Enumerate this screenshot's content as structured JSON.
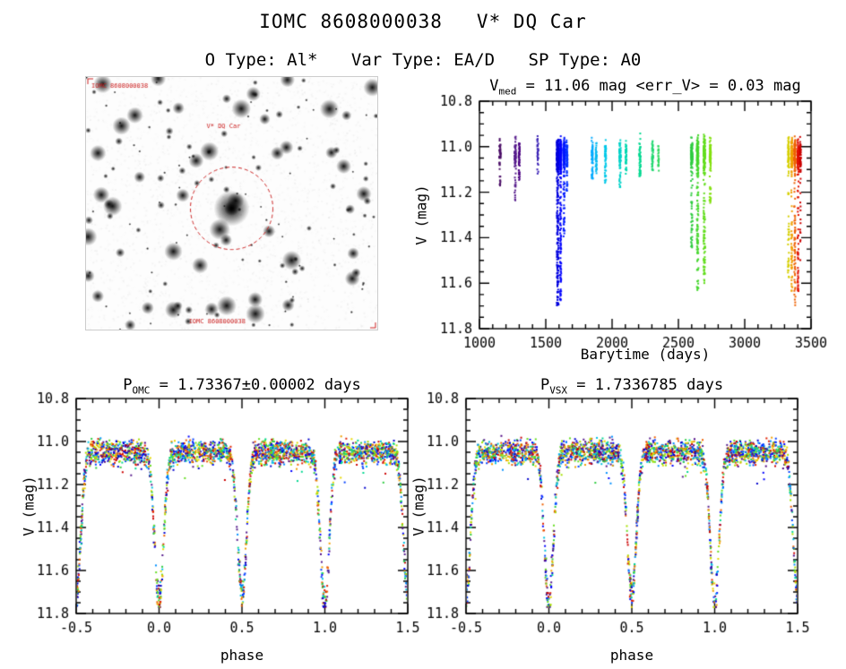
{
  "header": {
    "parts": [
      "IOMC 8608000038",
      "V* DQ Car"
    ]
  },
  "subtitle": {
    "parts": [
      "O Type: Al*",
      "Var Type: EA/D",
      "SP Type: A0"
    ]
  },
  "panels": {
    "timeseries": {
      "title_main": "V",
      "title_sub": "med",
      "title_rest": " = 11.06 mag <err_V> = 0.03 mag",
      "xlabel": "Barytime (days)",
      "ylabel": "V (mag)"
    },
    "phase_omc": {
      "title_main": "P",
      "title_sub": "OMC",
      "title_rest": " = 1.73367±0.00002 days",
      "xlabel": "phase",
      "ylabel": "V (mag)"
    },
    "phase_vsx": {
      "title_main": "P",
      "title_sub": "VSX",
      "title_rest": " = 1.7336785 days",
      "xlabel": "phase",
      "ylabel": "V (mag)"
    }
  },
  "finder": {
    "seed": 9,
    "n_stars": 165,
    "circle_color": "#cc2222",
    "labels": {
      "top_left": "IOMC 8608000038",
      "target": "V* DQ Car",
      "bottom": "IOMC 8608000038"
    }
  },
  "chart_data": [
    {
      "id": "timeseries",
      "type": "scatter",
      "render": "clusters",
      "title": "V_med = 11.06 mag <err_V> = 0.03 mag",
      "v_median_mag": 11.06,
      "v_err_mag": 0.03,
      "xlabel": "Barytime (days)",
      "ylabel": "V (mag)",
      "xlim": [
        1000,
        3500
      ],
      "ylim": [
        10.8,
        11.8
      ],
      "y_axis_is_magnitude": true,
      "xticks": [
        1000,
        1500,
        2000,
        2500,
        3000,
        3500
      ],
      "xtick_labels": [
        "1000",
        "1500",
        "2000",
        "2500",
        "3000",
        "3500"
      ],
      "yticks": [
        10.8,
        11.0,
        11.2,
        11.4,
        11.6,
        11.8
      ],
      "ytick_labels": [
        "10.8",
        "11.0",
        "11.2",
        "11.4",
        "11.6",
        "11.8"
      ],
      "xminor": 100,
      "yminor": 0.05,
      "grid": false,
      "seed": 5,
      "band_center_mag": 11.04,
      "clusters": [
        {
          "x": 1155,
          "w": 10,
          "n": 50,
          "band_frac": 0.85,
          "tail": 11.18,
          "color": "#4a0d66"
        },
        {
          "x": 1270,
          "w": 10,
          "n": 70,
          "band_frac": 0.8,
          "tail": 11.24,
          "color": "#551a8b"
        },
        {
          "x": 1300,
          "w": 8,
          "n": 45,
          "band_frac": 0.85,
          "tail": 11.15,
          "color": "#4b0082"
        },
        {
          "x": 1440,
          "w": 8,
          "n": 30,
          "band_frac": 0.9,
          "tail": 11.1,
          "color": "#3a21b5"
        },
        {
          "x": 1590,
          "w": 14,
          "n": 320,
          "band_frac": 0.62,
          "tail": 11.7,
          "color": "#0000dd"
        },
        {
          "x": 1612,
          "w": 10,
          "n": 260,
          "band_frac": 0.65,
          "tail": 11.68,
          "color": "#0000ff"
        },
        {
          "x": 1638,
          "w": 10,
          "n": 160,
          "band_frac": 0.78,
          "tail": 11.4,
          "color": "#0018ff"
        },
        {
          "x": 1660,
          "w": 8,
          "n": 80,
          "band_frac": 0.85,
          "tail": 11.2,
          "color": "#0030ff"
        },
        {
          "x": 1850,
          "w": 10,
          "n": 60,
          "band_frac": 0.85,
          "tail": 11.14,
          "color": "#00aaff"
        },
        {
          "x": 1880,
          "w": 8,
          "n": 40,
          "band_frac": 0.88,
          "tail": 11.1,
          "color": "#00b8f0"
        },
        {
          "x": 1950,
          "w": 10,
          "n": 55,
          "band_frac": 0.85,
          "tail": 11.16,
          "color": "#00c8e8"
        },
        {
          "x": 2060,
          "w": 12,
          "n": 70,
          "band_frac": 0.82,
          "tail": 11.18,
          "color": "#00d2c8"
        },
        {
          "x": 2105,
          "w": 8,
          "n": 40,
          "band_frac": 0.88,
          "tail": 11.1,
          "color": "#00d8b0"
        },
        {
          "x": 2210,
          "w": 10,
          "n": 55,
          "band_frac": 0.85,
          "tail": 11.13,
          "color": "#00d890"
        },
        {
          "x": 2305,
          "w": 8,
          "n": 40,
          "band_frac": 0.88,
          "tail": 11.1,
          "color": "#20d870"
        },
        {
          "x": 2350,
          "w": 6,
          "n": 25,
          "band_frac": 0.9,
          "tail": 11.08,
          "color": "#30d860"
        },
        {
          "x": 2600,
          "w": 12,
          "n": 140,
          "band_frac": 0.72,
          "tail": 11.45,
          "color": "#2ecc40"
        },
        {
          "x": 2645,
          "w": 12,
          "n": 220,
          "band_frac": 0.65,
          "tail": 11.64,
          "color": "#44d62c"
        },
        {
          "x": 2695,
          "w": 12,
          "n": 220,
          "band_frac": 0.66,
          "tail": 11.6,
          "color": "#63dd1e"
        },
        {
          "x": 2740,
          "w": 10,
          "n": 90,
          "band_frac": 0.8,
          "tail": 11.25,
          "color": "#84e010"
        },
        {
          "x": 3330,
          "w": 8,
          "n": 90,
          "band_frac": 0.72,
          "tail": 11.58,
          "color": "#d6cf00"
        },
        {
          "x": 3355,
          "w": 8,
          "n": 150,
          "band_frac": 0.66,
          "tail": 11.66,
          "color": "#f0a000"
        },
        {
          "x": 3378,
          "w": 8,
          "n": 170,
          "band_frac": 0.64,
          "tail": 11.7,
          "color": "#ee6000"
        },
        {
          "x": 3402,
          "w": 8,
          "n": 130,
          "band_frac": 0.68,
          "tail": 11.64,
          "color": "#e01000"
        },
        {
          "x": 3420,
          "w": 6,
          "n": 70,
          "band_frac": 0.75,
          "tail": 11.5,
          "color": "#cc0000"
        }
      ]
    },
    {
      "id": "phase_omc",
      "type": "scatter",
      "render": "phase_model",
      "title": "P_OMC = 1.73367±0.00002 days",
      "period_days": "1.73367±0.00002",
      "xlabel": "phase",
      "ylabel": "V (mag)",
      "xlim": [
        -0.5,
        1.5
      ],
      "ylim": [
        10.8,
        11.8
      ],
      "y_axis_is_magnitude": true,
      "xticks": [
        -0.5,
        0.0,
        0.5,
        1.0,
        1.5
      ],
      "xtick_labels": [
        "-0.5",
        "0.0",
        "0.5",
        "1.0",
        "1.5"
      ],
      "yticks": [
        10.8,
        11.0,
        11.2,
        11.4,
        11.6,
        11.8
      ],
      "ytick_labels": [
        "10.8",
        "11.0",
        "11.2",
        "11.4",
        "11.6",
        "11.8"
      ],
      "xminor": 0.1,
      "yminor": 0.05,
      "grid": false,
      "seed": 11,
      "model": {
        "n": 2600,
        "baseline_mag": 11.05,
        "noise_sigma": 0.027,
        "primary_phase": 0.0,
        "primary_depth": 0.7,
        "secondary_phase": 0.5,
        "secondary_depth": 0.66,
        "eclipse_sigma": 0.027,
        "max_mag": 11.77
      },
      "palette": [
        "#551a8b",
        "#4b0082",
        "#0000cd",
        "#0000ff",
        "#0040ff",
        "#0090ff",
        "#00c0e0",
        "#00d890",
        "#2ecc40",
        "#66dd22",
        "#a8e000",
        "#e6d800",
        "#f0a000",
        "#ee6000",
        "#e02000",
        "#cc0000"
      ]
    },
    {
      "id": "phase_vsx",
      "type": "scatter",
      "render": "phase_model",
      "title": "P_VSX = 1.7336785 days",
      "period_days": "1.7336785",
      "xlabel": "phase",
      "ylabel": "V (mag)",
      "xlim": [
        -0.5,
        1.5
      ],
      "ylim": [
        10.8,
        11.8
      ],
      "y_axis_is_magnitude": true,
      "xticks": [
        -0.5,
        0.0,
        0.5,
        1.0,
        1.5
      ],
      "xtick_labels": [
        "-0.5",
        "0.0",
        "0.5",
        "1.0",
        "1.5"
      ],
      "yticks": [
        10.8,
        11.0,
        11.2,
        11.4,
        11.6,
        11.8
      ],
      "ytick_labels": [
        "10.8",
        "11.0",
        "11.2",
        "11.4",
        "11.6",
        "11.8"
      ],
      "xminor": 0.1,
      "yminor": 0.05,
      "grid": false,
      "seed": 12,
      "model": {
        "n": 2600,
        "baseline_mag": 11.05,
        "noise_sigma": 0.027,
        "primary_phase": 0.0,
        "primary_depth": 0.7,
        "secondary_phase": 0.5,
        "secondary_depth": 0.66,
        "eclipse_sigma": 0.027,
        "max_mag": 11.77
      },
      "palette": [
        "#551a8b",
        "#4b0082",
        "#0000cd",
        "#0000ff",
        "#0040ff",
        "#0090ff",
        "#00c0e0",
        "#00d890",
        "#2ecc40",
        "#66dd22",
        "#a8e000",
        "#e6d800",
        "#f0a000",
        "#ee6000",
        "#e02000",
        "#cc0000"
      ]
    }
  ]
}
